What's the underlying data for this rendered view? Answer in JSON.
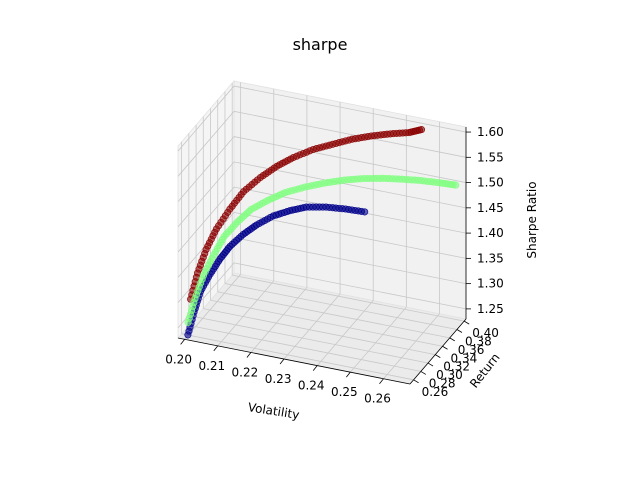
{
  "chart_data": {
    "type": "scatter",
    "title": "sharpe",
    "xlabel": "Volatility",
    "ylabel": "Return",
    "zlabel": "Sharpe Ratio",
    "x_ticks": [
      "0.20",
      "0.21",
      "0.22",
      "0.23",
      "0.24",
      "0.25",
      "0.26"
    ],
    "y_ticks": [
      "0.26",
      "0.28",
      "0.30",
      "0.32",
      "0.34",
      "0.36",
      "0.38",
      "0.40"
    ],
    "z_ticks": [
      "1.25",
      "1.30",
      "1.35",
      "1.40",
      "1.45",
      "1.50",
      "1.55",
      "1.60"
    ],
    "xlim": [
      0.198,
      0.268
    ],
    "ylim": [
      0.25,
      0.405
    ],
    "zlim": [
      1.23,
      1.61
    ],
    "grid": true,
    "series": [
      {
        "color": "#8b0000",
        "points": [
          [
            0.2005,
            0.262,
            1.3
          ],
          [
            0.2015,
            0.272,
            1.345
          ],
          [
            0.203,
            0.282,
            1.385
          ],
          [
            0.205,
            0.292,
            1.42
          ],
          [
            0.208,
            0.302,
            1.455
          ],
          [
            0.211,
            0.312,
            1.485
          ],
          [
            0.215,
            0.322,
            1.51
          ],
          [
            0.219,
            0.331,
            1.53
          ],
          [
            0.223,
            0.34,
            1.545
          ],
          [
            0.228,
            0.349,
            1.56
          ],
          [
            0.233,
            0.357,
            1.57
          ],
          [
            0.238,
            0.365,
            1.58
          ],
          [
            0.243,
            0.372,
            1.587
          ],
          [
            0.248,
            0.379,
            1.592
          ],
          [
            0.253,
            0.385,
            1.596
          ],
          [
            0.256,
            0.392,
            1.6
          ]
        ]
      },
      {
        "color": "#00008b",
        "points": [
          [
            0.201,
            0.25,
            1.24
          ],
          [
            0.202,
            0.258,
            1.28
          ],
          [
            0.203,
            0.266,
            1.315
          ],
          [
            0.205,
            0.275,
            1.345
          ],
          [
            0.207,
            0.284,
            1.37
          ],
          [
            0.209,
            0.293,
            1.39
          ],
          [
            0.212,
            0.302,
            1.41
          ],
          [
            0.215,
            0.311,
            1.425
          ],
          [
            0.219,
            0.321,
            1.44
          ],
          [
            0.223,
            0.33,
            1.448
          ],
          [
            0.227,
            0.339,
            1.453
          ],
          [
            0.232,
            0.348,
            1.452
          ],
          [
            0.237,
            0.356,
            1.448
          ],
          [
            0.242,
            0.363,
            1.443
          ]
        ]
      },
      {
        "color": "#7fff7f",
        "points": [
          [
            0.2005,
            0.255,
            1.26
          ],
          [
            0.2015,
            0.265,
            1.3
          ],
          [
            0.203,
            0.275,
            1.34
          ],
          [
            0.205,
            0.285,
            1.375
          ],
          [
            0.207,
            0.295,
            1.405
          ],
          [
            0.21,
            0.305,
            1.43
          ],
          [
            0.213,
            0.315,
            1.45
          ],
          [
            0.217,
            0.325,
            1.465
          ],
          [
            0.221,
            0.335,
            1.477
          ],
          [
            0.226,
            0.344,
            1.487
          ],
          [
            0.231,
            0.353,
            1.494
          ],
          [
            0.236,
            0.362,
            1.499
          ],
          [
            0.241,
            0.37,
            1.502
          ],
          [
            0.246,
            0.377,
            1.503
          ],
          [
            0.251,
            0.384,
            1.502
          ],
          [
            0.256,
            0.391,
            1.5
          ],
          [
            0.261,
            0.398,
            1.496
          ],
          [
            0.265,
            0.404,
            1.492
          ]
        ]
      }
    ]
  }
}
